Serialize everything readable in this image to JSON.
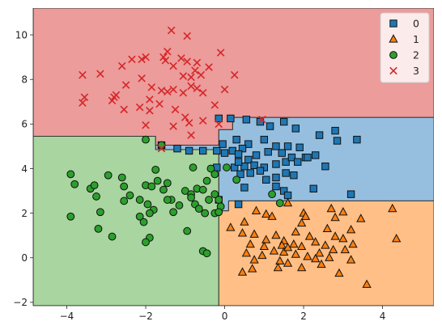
{
  "chart_data": {
    "type": "scatter",
    "title": "",
    "xlabel": "",
    "ylabel": "",
    "xlim": [
      -4.85,
      5.3
    ],
    "ylim": [
      -2.15,
      11.2
    ],
    "xticks": [
      -4,
      -2,
      0,
      2,
      4
    ],
    "yticks": [
      -2,
      0,
      2,
      4,
      6,
      8,
      10
    ],
    "grid": false,
    "legend_placement": "top-right",
    "decision_regions": [
      {
        "class": "0",
        "color": "#96bfdf",
        "polygon": [
          [
            0.2,
            6.3
          ],
          [
            5.3,
            6.3
          ],
          [
            5.3,
            2.55
          ],
          [
            0.1,
            2.55
          ],
          [
            0.1,
            2.1
          ],
          [
            -0.15,
            2.1
          ],
          [
            -0.15,
            4.85
          ],
          [
            -1.75,
            4.85
          ],
          [
            -1.75,
            5.05
          ],
          [
            -0.15,
            5.05
          ],
          [
            -0.15,
            5.75
          ],
          [
            0.2,
            5.75
          ]
        ]
      },
      {
        "class": "1",
        "color": "#ffbf86",
        "polygon": [
          [
            -0.15,
            -2.15
          ],
          [
            5.3,
            -2.15
          ],
          [
            5.3,
            2.55
          ],
          [
            0.1,
            2.55
          ],
          [
            0.1,
            2.1
          ],
          [
            -0.15,
            2.1
          ]
        ]
      },
      {
        "class": "2",
        "color": "#a8d5a0",
        "polygon": [
          [
            -4.85,
            -2.15
          ],
          [
            -0.15,
            -2.15
          ],
          [
            -0.15,
            4.85
          ],
          [
            -1.75,
            4.85
          ],
          [
            -1.75,
            5.45
          ],
          [
            -4.85,
            5.45
          ]
        ]
      },
      {
        "class": "3",
        "color": "#eb9c9b",
        "polygon": [
          [
            -4.85,
            5.45
          ],
          [
            -1.75,
            5.45
          ],
          [
            -1.75,
            5.05
          ],
          [
            -0.15,
            5.05
          ],
          [
            -0.15,
            5.75
          ],
          [
            0.2,
            5.75
          ],
          [
            0.2,
            6.3
          ],
          [
            5.3,
            6.3
          ],
          [
            5.3,
            11.2
          ],
          [
            -4.85,
            11.2
          ]
        ]
      }
    ],
    "series": [
      {
        "name": "0",
        "marker": "square",
        "color": "#1f77b4",
        "points": [
          [
            0.15,
            6.25
          ],
          [
            0.55,
            6.2
          ],
          [
            0.9,
            6.1
          ],
          [
            1.15,
            5.9
          ],
          [
            1.5,
            6.1
          ],
          [
            1.8,
            5.8
          ],
          [
            2.4,
            5.5
          ],
          [
            2.8,
            5.7
          ],
          [
            3.35,
            5.3
          ],
          [
            2.85,
            5.25
          ],
          [
            0.3,
            5.3
          ],
          [
            0.6,
            5.1
          ],
          [
            1.0,
            5.3
          ],
          [
            1.3,
            5.0
          ],
          [
            1.45,
            4.7
          ],
          [
            1.6,
            5.0
          ],
          [
            0.45,
            4.9
          ],
          [
            0.2,
            4.8
          ],
          [
            0.8,
            4.6
          ],
          [
            1.1,
            4.75
          ],
          [
            1.9,
            4.95
          ],
          [
            2.05,
            4.5
          ],
          [
            2.3,
            4.6
          ],
          [
            0.0,
            4.7
          ],
          [
            0.35,
            4.65
          ],
          [
            0.6,
            4.4
          ],
          [
            0.75,
            4.15
          ],
          [
            1.0,
            4.05
          ],
          [
            1.3,
            4.2
          ],
          [
            1.55,
            4.3
          ],
          [
            1.7,
            4.5
          ],
          [
            1.85,
            4.3
          ],
          [
            2.1,
            4.5
          ],
          [
            2.55,
            4.1
          ],
          [
            0.25,
            4.05
          ],
          [
            0.4,
            3.75
          ],
          [
            0.65,
            3.8
          ],
          [
            0.9,
            3.9
          ],
          [
            1.05,
            3.5
          ],
          [
            1.3,
            3.6
          ],
          [
            1.55,
            3.8
          ],
          [
            1.75,
            3.7
          ],
          [
            0.5,
            4.1
          ],
          [
            0.35,
            4.3
          ],
          [
            -0.2,
            4.05
          ],
          [
            0.5,
            3.15
          ],
          [
            1.3,
            3.2
          ],
          [
            1.5,
            3.0
          ],
          [
            1.6,
            2.8
          ],
          [
            2.25,
            3.1
          ],
          [
            3.2,
            2.85
          ],
          [
            0.35,
            2.4
          ],
          [
            -0.15,
            2.6
          ],
          [
            -0.2,
            4.8
          ],
          [
            -0.55,
            4.8
          ],
          [
            -0.9,
            4.8
          ],
          [
            -1.2,
            4.9
          ],
          [
            -1.6,
            5.05
          ],
          [
            -0.05,
            5.1
          ],
          [
            -0.15,
            6.25
          ]
        ]
      },
      {
        "name": "1",
        "marker": "triangle",
        "color": "#ff7f0e",
        "points": [
          [
            0.8,
            2.1
          ],
          [
            1.05,
            1.95
          ],
          [
            1.2,
            1.85
          ],
          [
            1.6,
            2.45
          ],
          [
            2.0,
            2.0
          ],
          [
            2.05,
            1.85
          ],
          [
            1.95,
            1.55
          ],
          [
            2.7,
            2.2
          ],
          [
            3.0,
            2.05
          ],
          [
            2.8,
            1.8
          ],
          [
            3.45,
            1.75
          ],
          [
            4.25,
            2.2
          ],
          [
            4.35,
            0.85
          ],
          [
            0.5,
            1.6
          ],
          [
            0.15,
            1.35
          ],
          [
            0.45,
            1.1
          ],
          [
            0.75,
            1.05
          ],
          [
            1.05,
            0.8
          ],
          [
            1.3,
            1.0
          ],
          [
            1.5,
            0.75
          ],
          [
            1.8,
            1.15
          ],
          [
            2.15,
            0.95
          ],
          [
            2.6,
            1.3
          ],
          [
            2.8,
            0.95
          ],
          [
            3.0,
            0.85
          ],
          [
            3.2,
            1.25
          ],
          [
            0.65,
            0.6
          ],
          [
            1.0,
            0.5
          ],
          [
            1.45,
            0.55
          ],
          [
            1.75,
            0.6
          ],
          [
            1.95,
            0.5
          ],
          [
            2.3,
            0.7
          ],
          [
            2.55,
            0.55
          ],
          [
            2.75,
            0.35
          ],
          [
            3.05,
            0.35
          ],
          [
            3.25,
            0.6
          ],
          [
            0.55,
            0.2
          ],
          [
            0.95,
            0.1
          ],
          [
            1.25,
            0.3
          ],
          [
            1.5,
            0.25
          ],
          [
            1.8,
            0.15
          ],
          [
            2.1,
            0.05
          ],
          [
            2.4,
            0.2
          ],
          [
            2.65,
            0.0
          ],
          [
            3.2,
            -0.1
          ],
          [
            0.75,
            -0.1
          ],
          [
            1.4,
            -0.15
          ],
          [
            1.6,
            -0.25
          ],
          [
            1.95,
            -0.45
          ],
          [
            2.3,
            -0.05
          ],
          [
            0.7,
            -0.5
          ],
          [
            1.35,
            -0.45
          ],
          [
            3.6,
            -1.2
          ],
          [
            0.45,
            -0.65
          ],
          [
            1.6,
            0.45
          ],
          [
            2.9,
            -0.7
          ],
          [
            2.45,
            -0.3
          ]
        ]
      },
      {
        "name": "2",
        "marker": "circle",
        "color": "#2ca02c",
        "points": [
          [
            -3.9,
            3.75
          ],
          [
            -3.8,
            3.3
          ],
          [
            -3.4,
            3.1
          ],
          [
            -3.25,
            2.75
          ],
          [
            -3.15,
            2.05
          ],
          [
            -2.95,
            3.7
          ],
          [
            -2.6,
            3.6
          ],
          [
            -2.55,
            3.2
          ],
          [
            -2.4,
            2.8
          ],
          [
            -2.15,
            2.6
          ],
          [
            -2.0,
            3.25
          ],
          [
            -1.85,
            3.2
          ],
          [
            -1.7,
            3.45
          ],
          [
            -1.95,
            2.4
          ],
          [
            -1.8,
            2.15
          ],
          [
            -1.9,
            2.0
          ],
          [
            -2.15,
            1.85
          ],
          [
            -2.05,
            1.6
          ],
          [
            -1.55,
            3.05
          ],
          [
            -1.45,
            3.35
          ],
          [
            -1.35,
            2.6
          ],
          [
            -1.15,
            2.35
          ],
          [
            -1.3,
            2.05
          ],
          [
            -1.0,
            3.0
          ],
          [
            -0.85,
            2.85
          ],
          [
            -0.7,
            3.1
          ],
          [
            -0.55,
            3.05
          ],
          [
            -0.45,
            3.45
          ],
          [
            -0.4,
            2.6
          ],
          [
            -0.75,
            2.4
          ],
          [
            -0.65,
            2.2
          ],
          [
            -0.5,
            2.0
          ],
          [
            -0.25,
            2.85
          ],
          [
            -0.15,
            2.6
          ],
          [
            -0.1,
            2.3
          ],
          [
            -0.25,
            2.0
          ],
          [
            -0.95,
            1.2
          ],
          [
            -0.55,
            0.3
          ],
          [
            -0.45,
            0.2
          ],
          [
            -1.9,
            0.9
          ],
          [
            -2.0,
            0.7
          ],
          [
            -2.55,
            2.55
          ],
          [
            -3.9,
            1.85
          ],
          [
            -3.2,
            1.3
          ],
          [
            -2.85,
            0.95
          ],
          [
            -3.3,
            3.25
          ],
          [
            -2.0,
            5.3
          ],
          [
            -1.75,
            3.95
          ],
          [
            -0.35,
            4.0
          ],
          [
            -0.25,
            3.75
          ],
          [
            0.3,
            3.5
          ],
          [
            -0.8,
            4.05
          ],
          [
            -1.6,
            5.05
          ],
          [
            0.05,
            4.05
          ],
          [
            1.4,
            2.45
          ],
          [
            -0.15,
            2.05
          ],
          [
            -1.45,
            2.6
          ],
          [
            -0.85,
            2.7
          ],
          [
            1.2,
            2.85
          ]
        ]
      },
      {
        "name": "3",
        "marker": "x",
        "color": "#d62728",
        "points": [
          [
            -3.6,
            8.2
          ],
          [
            -3.15,
            8.25
          ],
          [
            -3.55,
            7.2
          ],
          [
            -3.6,
            6.95
          ],
          [
            -2.8,
            7.2
          ],
          [
            -2.85,
            7.05
          ],
          [
            -2.55,
            6.65
          ],
          [
            -2.6,
            8.6
          ],
          [
            -2.35,
            8.9
          ],
          [
            -2.1,
            8.9
          ],
          [
            -2.0,
            9.0
          ],
          [
            -1.55,
            9.0
          ],
          [
            -1.45,
            9.25
          ],
          [
            -1.5,
            8.85
          ],
          [
            -1.3,
            8.6
          ],
          [
            -1.1,
            8.95
          ],
          [
            -0.95,
            8.8
          ],
          [
            -0.95,
            9.95
          ],
          [
            -1.35,
            10.2
          ],
          [
            -0.7,
            8.75
          ],
          [
            -0.75,
            8.4
          ],
          [
            -0.6,
            8.2
          ],
          [
            -0.85,
            8.1
          ],
          [
            -1.05,
            8.15
          ],
          [
            -0.4,
            8.55
          ],
          [
            -0.1,
            9.2
          ],
          [
            0.25,
            8.2
          ],
          [
            -2.1,
            8.05
          ],
          [
            -2.5,
            7.75
          ],
          [
            -1.85,
            7.65
          ],
          [
            -1.6,
            7.5
          ],
          [
            -1.45,
            7.45
          ],
          [
            -1.3,
            7.55
          ],
          [
            -1.05,
            7.4
          ],
          [
            -0.85,
            7.7
          ],
          [
            -0.7,
            7.6
          ],
          [
            -0.55,
            7.4
          ],
          [
            0.0,
            7.55
          ],
          [
            -2.75,
            7.3
          ],
          [
            -1.9,
            7.1
          ],
          [
            -1.65,
            6.9
          ],
          [
            -2.15,
            6.75
          ],
          [
            -1.9,
            6.6
          ],
          [
            -1.25,
            6.65
          ],
          [
            -1.0,
            6.3
          ],
          [
            -0.9,
            6.05
          ],
          [
            -0.55,
            6.15
          ],
          [
            -0.25,
            6.85
          ],
          [
            -0.15,
            6.0
          ],
          [
            -1.3,
            5.9
          ],
          [
            -0.85,
            5.5
          ],
          [
            -2.0,
            5.95
          ],
          [
            0.95,
            6.2
          ],
          [
            -1.6,
            4.9
          ]
        ]
      }
    ],
    "legend": {
      "entries": [
        "0",
        "1",
        "2",
        "3"
      ]
    }
  }
}
